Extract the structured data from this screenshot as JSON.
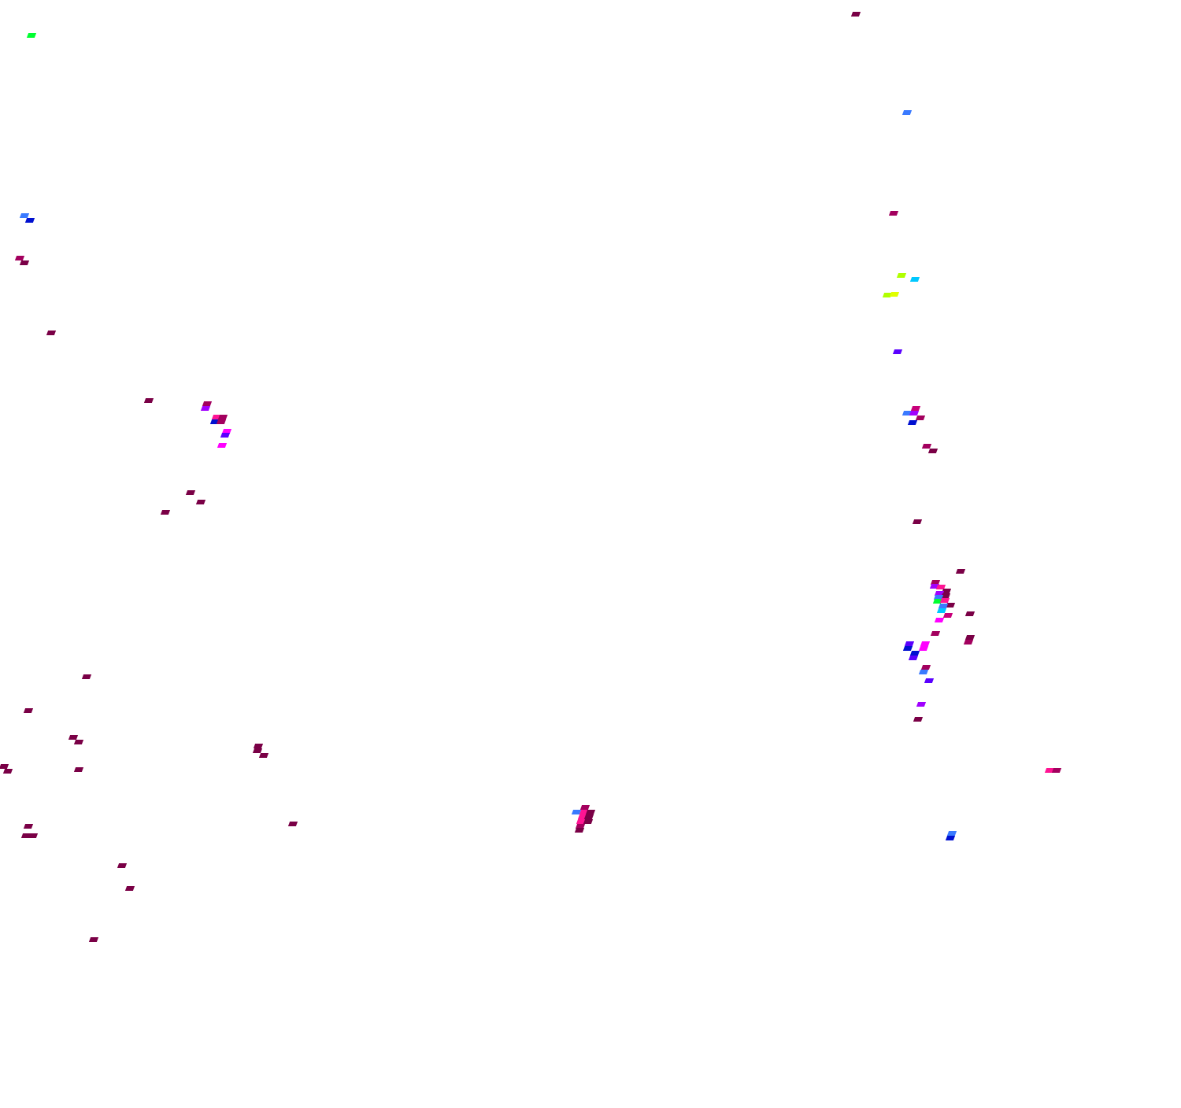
{
  "map": {
    "layer": "precipitation-overlay",
    "basemap": "none",
    "palette": {
      "maroon": "#7a0046",
      "crimson": "#a3005e",
      "magenta-deep": "#c8007a",
      "pink": "#ff1493",
      "magenta": "#ff00ff",
      "violet": "#a000ff",
      "indigo": "#5a00ff",
      "blue": "#0010d0",
      "sky": "#3a7aff",
      "cyan": "#00c8ff",
      "green": "#00ff30",
      "lime": "#b0ff00",
      "yellow": "#e0ff00"
    }
  }
}
